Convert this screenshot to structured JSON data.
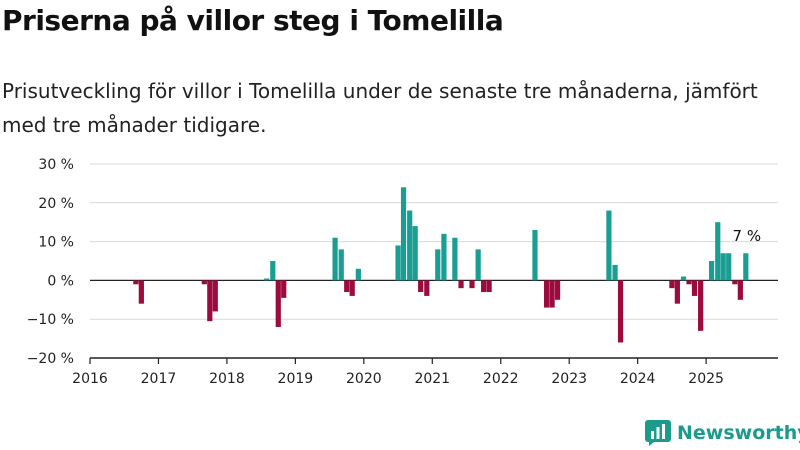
{
  "header": {
    "title": "Priserna på villor steg i Tomelilla",
    "subtitle": "Prisutveckling för villor i Tomelilla under de senaste tre månaderna, jämfört med tre månader tidigare."
  },
  "brand": {
    "name": "Newsworthy",
    "icon": "bar-chart-logo-icon",
    "color": "#1a9b8b"
  },
  "colors": {
    "positive": "#1a9e93",
    "negative": "#9c0b3e"
  },
  "chart_data": {
    "type": "bar",
    "ylim": [
      -20,
      30
    ],
    "yticks": [
      -20,
      -10,
      0,
      10,
      20,
      30
    ],
    "ytick_labels": [
      "−20 %",
      "−10 %",
      "0 %",
      "10 %",
      "20 %",
      "30 %"
    ],
    "xlim": [
      2016,
      2026.05
    ],
    "xticks": [
      2016,
      2017,
      2018,
      2019,
      2020,
      2021,
      2022,
      2023,
      2024,
      2025
    ],
    "grid": true,
    "annotation": {
      "text": "7 %",
      "x": 2025.58,
      "y": 7
    },
    "points": [
      {
        "x": 2016.67,
        "y": -1
      },
      {
        "x": 2016.75,
        "y": -6
      },
      {
        "x": 2017.67,
        "y": -1
      },
      {
        "x": 2017.75,
        "y": -10.5
      },
      {
        "x": 2017.83,
        "y": -8
      },
      {
        "x": 2018.58,
        "y": 0.5
      },
      {
        "x": 2018.67,
        "y": 5
      },
      {
        "x": 2018.75,
        "y": -12
      },
      {
        "x": 2018.83,
        "y": -4.5
      },
      {
        "x": 2019.58,
        "y": 11
      },
      {
        "x": 2019.67,
        "y": 8
      },
      {
        "x": 2019.75,
        "y": -3
      },
      {
        "x": 2019.83,
        "y": -4
      },
      {
        "x": 2019.92,
        "y": 3
      },
      {
        "x": 2020.5,
        "y": 9
      },
      {
        "x": 2020.58,
        "y": 24
      },
      {
        "x": 2020.67,
        "y": 18
      },
      {
        "x": 2020.75,
        "y": 14
      },
      {
        "x": 2020.83,
        "y": -3
      },
      {
        "x": 2020.92,
        "y": -4
      },
      {
        "x": 2021.08,
        "y": 8
      },
      {
        "x": 2021.17,
        "y": 12
      },
      {
        "x": 2021.33,
        "y": 11
      },
      {
        "x": 2021.42,
        "y": -2
      },
      {
        "x": 2021.58,
        "y": -2
      },
      {
        "x": 2021.67,
        "y": 8
      },
      {
        "x": 2021.75,
        "y": -3
      },
      {
        "x": 2021.83,
        "y": -3
      },
      {
        "x": 2022.5,
        "y": 13
      },
      {
        "x": 2022.67,
        "y": -7
      },
      {
        "x": 2022.75,
        "y": -7
      },
      {
        "x": 2022.83,
        "y": -5
      },
      {
        "x": 2023.58,
        "y": 18
      },
      {
        "x": 2023.67,
        "y": 4
      },
      {
        "x": 2023.75,
        "y": -16
      },
      {
        "x": 2024.5,
        "y": -2
      },
      {
        "x": 2024.58,
        "y": -6
      },
      {
        "x": 2024.67,
        "y": 1
      },
      {
        "x": 2024.75,
        "y": -1
      },
      {
        "x": 2024.83,
        "y": -4
      },
      {
        "x": 2024.92,
        "y": -13
      },
      {
        "x": 2025.08,
        "y": 5
      },
      {
        "x": 2025.17,
        "y": 15
      },
      {
        "x": 2025.25,
        "y": 7
      },
      {
        "x": 2025.33,
        "y": 7
      },
      {
        "x": 2025.42,
        "y": -1
      },
      {
        "x": 2025.5,
        "y": -5
      },
      {
        "x": 2025.58,
        "y": 7
      }
    ]
  }
}
